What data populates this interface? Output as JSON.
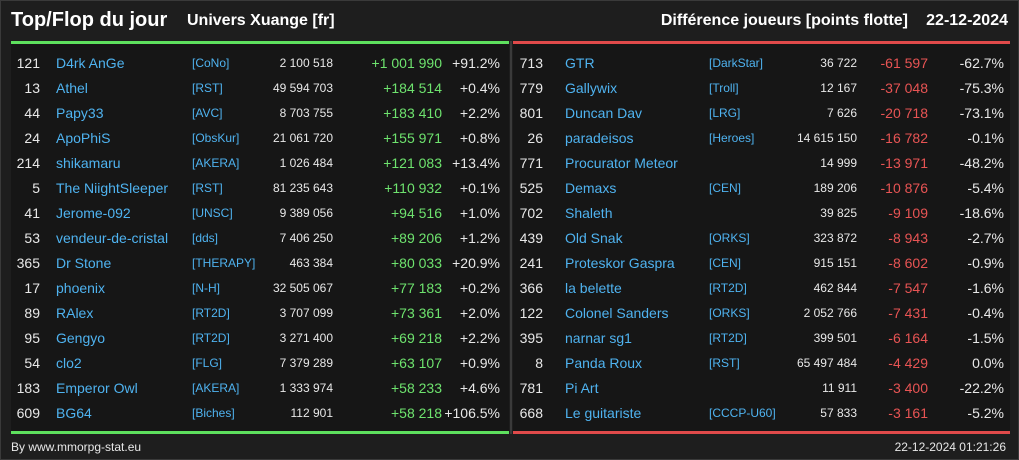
{
  "header": {
    "title": "Top/Flop du jour",
    "subtitle": "Univers Xuange [fr]",
    "metric": "Différence joueurs [points flotte]",
    "date": "22-12-2024"
  },
  "top": [
    {
      "rank": "121",
      "name": "D4rk AnGe",
      "guild": "[CoNo]",
      "score": "2 100 518",
      "diff": "+1 001 990",
      "pct": "+91.2%"
    },
    {
      "rank": "13",
      "name": "Athel",
      "guild": "[RST]",
      "score": "49 594 703",
      "diff": "+184 514",
      "pct": "+0.4%"
    },
    {
      "rank": "44",
      "name": "Papy33",
      "guild": "[AVC]",
      "score": "8 703 755",
      "diff": "+183 410",
      "pct": "+2.2%"
    },
    {
      "rank": "24",
      "name": "ApoPhiS",
      "guild": "[ObsKur]",
      "score": "21 061 720",
      "diff": "+155 971",
      "pct": "+0.8%"
    },
    {
      "rank": "214",
      "name": "shikamaru",
      "guild": "[AKERA]",
      "score": "1 026 484",
      "diff": "+121 083",
      "pct": "+13.4%"
    },
    {
      "rank": "5",
      "name": "The NiightSleeper",
      "guild": "[RST]",
      "score": "81 235 643",
      "diff": "+110 932",
      "pct": "+0.1%"
    },
    {
      "rank": "41",
      "name": "Jerome-092",
      "guild": "[UNSC]",
      "score": "9 389 056",
      "diff": "+94 516",
      "pct": "+1.0%"
    },
    {
      "rank": "53",
      "name": "vendeur-de-cristal",
      "guild": "[dds]",
      "score": "7 406 250",
      "diff": "+89 206",
      "pct": "+1.2%"
    },
    {
      "rank": "365",
      "name": "Dr Stone",
      "guild": "[THERAPY]",
      "score": "463 384",
      "diff": "+80 033",
      "pct": "+20.9%"
    },
    {
      "rank": "17",
      "name": "phoenix",
      "guild": "[N-H]",
      "score": "32 505 067",
      "diff": "+77 183",
      "pct": "+0.2%"
    },
    {
      "rank": "89",
      "name": "RAlex",
      "guild": "[RT2D]",
      "score": "3 707 099",
      "diff": "+73 361",
      "pct": "+2.0%"
    },
    {
      "rank": "95",
      "name": "Gengyo",
      "guild": "[RT2D]",
      "score": "3 271 400",
      "diff": "+69 218",
      "pct": "+2.2%"
    },
    {
      "rank": "54",
      "name": "clo2",
      "guild": "[FLG]",
      "score": "7 379 289",
      "diff": "+63 107",
      "pct": "+0.9%"
    },
    {
      "rank": "183",
      "name": "Emperor Owl",
      "guild": "[AKERA]",
      "score": "1 333 974",
      "diff": "+58 233",
      "pct": "+4.6%"
    },
    {
      "rank": "609",
      "name": "BG64",
      "guild": "[Biches]",
      "score": "112 901",
      "diff": "+58 218",
      "pct": "+106.5%"
    }
  ],
  "flop": [
    {
      "rank": "713",
      "name": "GTR",
      "guild": "[DarkStar]",
      "score": "36 722",
      "diff": "-61 597",
      "pct": "-62.7%"
    },
    {
      "rank": "779",
      "name": "Gallywix",
      "guild": "[Troll]",
      "score": "12 167",
      "diff": "-37 048",
      "pct": "-75.3%"
    },
    {
      "rank": "801",
      "name": "Duncan Dav",
      "guild": "[LRG]",
      "score": "7 626",
      "diff": "-20 718",
      "pct": "-73.1%"
    },
    {
      "rank": "26",
      "name": "paradeisos",
      "guild": "[Heroes]",
      "score": "14 615 150",
      "diff": "-16 782",
      "pct": "-0.1%"
    },
    {
      "rank": "771",
      "name": "Procurator Meteor",
      "guild": "",
      "score": "14 999",
      "diff": "-13 971",
      "pct": "-48.2%"
    },
    {
      "rank": "525",
      "name": "Demaxs",
      "guild": "[CEN]",
      "score": "189 206",
      "diff": "-10 876",
      "pct": "-5.4%"
    },
    {
      "rank": "702",
      "name": "Shaleth",
      "guild": "",
      "score": "39 825",
      "diff": "-9 109",
      "pct": "-18.6%"
    },
    {
      "rank": "439",
      "name": "Old Snak",
      "guild": "[ORKS]",
      "score": "323 872",
      "diff": "-8 943",
      "pct": "-2.7%"
    },
    {
      "rank": "241",
      "name": "Proteskor Gaspra",
      "guild": "[CEN]",
      "score": "915 151",
      "diff": "-8 602",
      "pct": "-0.9%"
    },
    {
      "rank": "366",
      "name": "la belette",
      "guild": "[RT2D]",
      "score": "462 844",
      "diff": "-7 547",
      "pct": "-1.6%"
    },
    {
      "rank": "122",
      "name": "Colonel Sanders",
      "guild": "[ORKS]",
      "score": "2 052 766",
      "diff": "-7 431",
      "pct": "-0.4%"
    },
    {
      "rank": "395",
      "name": "narnar sg1",
      "guild": "[RT2D]",
      "score": "399 501",
      "diff": "-6 164",
      "pct": "-1.5%"
    },
    {
      "rank": "8",
      "name": "Panda Roux",
      "guild": "[RST]",
      "score": "65 497 484",
      "diff": "-4 429",
      "pct": "0.0%"
    },
    {
      "rank": "781",
      "name": "Pi Art",
      "guild": "",
      "score": "11 911",
      "diff": "-3 400",
      "pct": "-22.2%"
    },
    {
      "rank": "668",
      "name": "Le guitariste",
      "guild": "[CCCP-U60]",
      "score": "57 833",
      "diff": "-3 161",
      "pct": "-5.2%"
    }
  ],
  "footer": {
    "credit": "By www.mmorpg-stat.eu",
    "timestamp": "22-12-2024 01:21:26"
  },
  "colors": {
    "top_accent": "#5ee05e",
    "flop_accent": "#e04a4a",
    "link": "#4fb3f0"
  }
}
